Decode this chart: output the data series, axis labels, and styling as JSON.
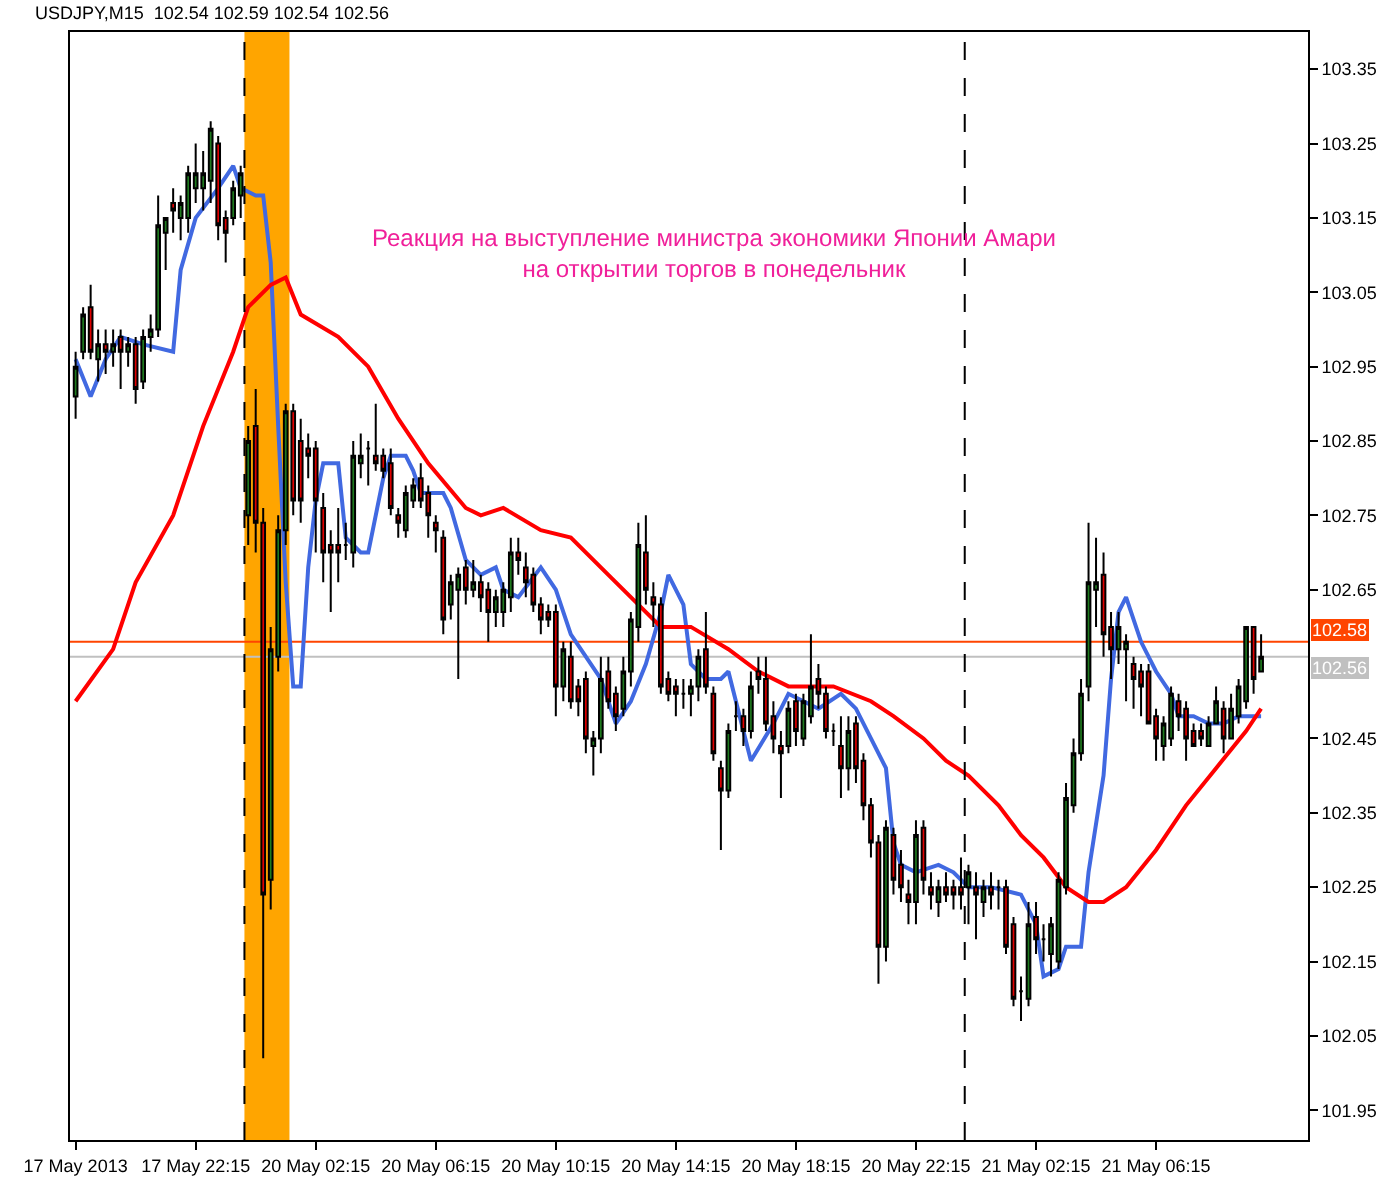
{
  "chart_data": {
    "type": "candlestick",
    "title": "USDJPY,M15  102.54 102.59 102.54 102.56",
    "categories": [
      "17 May 2013",
      null,
      null,
      null,
      null,
      null,
      null,
      null,
      null,
      null,
      null,
      null,
      null,
      null,
      null,
      null,
      "17 May 22:15",
      null,
      null,
      null,
      null,
      null,
      null,
      null,
      null,
      null,
      null,
      null,
      null,
      null,
      null,
      null,
      "20 May 02:15",
      null,
      null,
      null,
      null,
      null,
      null,
      null,
      null,
      null,
      null,
      null,
      null,
      null,
      null,
      null,
      "20 May 06:15",
      null,
      null,
      null,
      null,
      null,
      null,
      null,
      null,
      null,
      null,
      null,
      null,
      null,
      null,
      null,
      "20 May 10:15",
      null,
      null,
      null,
      null,
      null,
      null,
      null,
      null,
      null,
      null,
      null,
      null,
      null,
      null,
      null,
      "20 May 14:15",
      null,
      null,
      null,
      null,
      null,
      null,
      null,
      null,
      null,
      null,
      null,
      null,
      null,
      null,
      null,
      "20 May 18:15",
      null,
      null,
      null,
      null,
      null,
      null,
      null,
      null,
      null,
      null,
      null,
      null,
      null,
      null,
      null,
      "20 May 22:15",
      null,
      null,
      null,
      null,
      null,
      null,
      null,
      null,
      null,
      null,
      null,
      null,
      null,
      null,
      null,
      "21 May 02:15",
      null,
      null,
      null,
      null,
      null,
      null,
      null,
      null,
      null,
      null,
      null,
      null,
      null,
      null,
      null,
      "21 May 06:15",
      null,
      null,
      null,
      null,
      null,
      null,
      null,
      null,
      null,
      null,
      null,
      null,
      null,
      null
    ],
    "ohlc": [
      [
        102.91,
        102.97,
        102.88,
        102.95
      ],
      [
        102.97,
        103.03,
        102.96,
        103.02
      ],
      [
        103.03,
        103.06,
        102.96,
        102.97
      ],
      [
        102.96,
        103.0,
        102.93,
        102.98
      ],
      [
        102.98,
        103.0,
        102.94,
        102.97
      ],
      [
        102.97,
        103.0,
        102.95,
        102.98
      ],
      [
        102.99,
        103.0,
        102.92,
        102.97
      ],
      [
        102.97,
        102.99,
        102.95,
        102.98
      ],
      [
        102.98,
        102.99,
        102.9,
        102.92
      ],
      [
        102.93,
        103.0,
        102.92,
        102.99
      ],
      [
        102.99,
        103.02,
        102.97,
        103.0
      ],
      [
        103.0,
        103.18,
        102.99,
        103.14
      ],
      [
        103.13,
        103.15,
        103.08,
        103.15
      ],
      [
        103.17,
        103.19,
        103.13,
        103.16
      ],
      [
        103.15,
        103.18,
        103.12,
        103.17
      ],
      [
        103.15,
        103.22,
        103.13,
        103.21
      ],
      [
        103.19,
        103.25,
        103.17,
        103.21
      ],
      [
        103.19,
        103.24,
        103.16,
        103.21
      ],
      [
        103.2,
        103.28,
        103.17,
        103.27
      ],
      [
        103.25,
        103.26,
        103.12,
        103.14
      ],
      [
        103.15,
        103.16,
        103.09,
        103.13
      ],
      [
        103.15,
        103.2,
        103.14,
        103.19
      ],
      [
        103.18,
        103.22,
        103.15,
        103.21
      ],
      [
        102.75,
        102.87,
        102.71,
        102.85
      ],
      [
        102.87,
        102.92,
        102.7,
        102.74
      ],
      [
        102.74,
        102.76,
        102.02,
        102.24
      ],
      [
        102.26,
        102.6,
        102.22,
        102.57
      ],
      [
        102.56,
        102.75,
        102.54,
        102.73
      ],
      [
        102.73,
        102.9,
        102.71,
        102.89
      ],
      [
        102.89,
        102.9,
        102.75,
        102.77
      ],
      [
        102.85,
        102.88,
        102.74,
        102.77
      ],
      [
        102.84,
        102.86,
        102.8,
        102.83
      ],
      [
        102.84,
        102.85,
        102.7,
        102.77
      ],
      [
        102.76,
        102.78,
        102.66,
        102.7
      ],
      [
        102.71,
        102.73,
        102.62,
        102.7
      ],
      [
        102.71,
        102.76,
        102.66,
        102.7
      ],
      [
        102.71,
        102.74,
        102.69,
        102.71
      ],
      [
        102.7,
        102.85,
        102.68,
        102.83
      ],
      [
        102.82,
        102.86,
        102.8,
        102.83
      ],
      [
        102.84,
        102.85,
        102.79,
        102.84
      ],
      [
        102.83,
        102.9,
        102.81,
        102.82
      ],
      [
        102.83,
        102.84,
        102.8,
        102.81
      ],
      [
        102.82,
        102.84,
        102.75,
        102.76
      ],
      [
        102.75,
        102.76,
        102.72,
        102.74
      ],
      [
        102.73,
        102.79,
        102.72,
        102.78
      ],
      [
        102.77,
        102.8,
        102.76,
        102.79
      ],
      [
        102.8,
        102.82,
        102.76,
        102.77
      ],
      [
        102.78,
        102.79,
        102.72,
        102.75
      ],
      [
        102.74,
        102.75,
        102.7,
        102.73
      ],
      [
        102.72,
        102.73,
        102.59,
        102.61
      ],
      [
        102.63,
        102.67,
        102.61,
        102.66
      ],
      [
        102.65,
        102.68,
        102.53,
        102.67
      ],
      [
        102.68,
        102.69,
        102.63,
        102.65
      ],
      [
        102.65,
        102.69,
        102.64,
        102.66
      ],
      [
        102.66,
        102.67,
        102.62,
        102.64
      ],
      [
        102.65,
        102.66,
        102.58,
        102.62
      ],
      [
        102.62,
        102.65,
        102.6,
        102.64
      ],
      [
        102.62,
        102.66,
        102.6,
        102.65
      ],
      [
        102.64,
        102.72,
        102.62,
        102.7
      ],
      [
        102.7,
        102.72,
        102.67,
        102.69
      ],
      [
        102.68,
        102.7,
        102.64,
        102.66
      ],
      [
        102.67,
        102.68,
        102.62,
        102.63
      ],
      [
        102.63,
        102.64,
        102.59,
        102.61
      ],
      [
        102.62,
        102.63,
        102.6,
        102.61
      ],
      [
        102.62,
        102.63,
        102.48,
        102.52
      ],
      [
        102.52,
        102.58,
        102.5,
        102.57
      ],
      [
        102.56,
        102.58,
        102.49,
        102.5
      ],
      [
        102.52,
        102.53,
        102.48,
        102.5
      ],
      [
        102.53,
        102.54,
        102.43,
        102.45
      ],
      [
        102.44,
        102.46,
        102.4,
        102.45
      ],
      [
        102.45,
        102.56,
        102.43,
        102.53
      ],
      [
        102.54,
        102.56,
        102.49,
        102.5
      ],
      [
        102.51,
        102.52,
        102.46,
        102.48
      ],
      [
        102.49,
        102.56,
        102.48,
        102.54
      ],
      [
        102.54,
        102.62,
        102.52,
        102.61
      ],
      [
        102.6,
        102.74,
        102.58,
        102.71
      ],
      [
        102.7,
        102.75,
        102.63,
        102.65
      ],
      [
        102.64,
        102.66,
        102.6,
        102.63
      ],
      [
        102.63,
        102.64,
        102.51,
        102.52
      ],
      [
        102.53,
        102.54,
        102.5,
        102.51
      ],
      [
        102.52,
        102.53,
        102.48,
        102.51
      ],
      [
        102.51,
        102.53,
        102.49,
        102.51
      ],
      [
        102.51,
        102.53,
        102.48,
        102.52
      ],
      [
        102.52,
        102.57,
        102.5,
        102.56
      ],
      [
        102.57,
        102.62,
        102.51,
        102.52
      ],
      [
        102.51,
        102.52,
        102.42,
        102.43
      ],
      [
        102.41,
        102.42,
        102.3,
        102.38
      ],
      [
        102.38,
        102.47,
        102.37,
        102.46
      ],
      [
        102.48,
        102.5,
        102.46,
        102.48
      ],
      [
        102.48,
        102.49,
        102.44,
        102.46
      ],
      [
        102.46,
        102.54,
        102.45,
        102.52
      ],
      [
        102.54,
        102.56,
        102.51,
        102.53
      ],
      [
        102.53,
        102.56,
        102.46,
        102.47
      ],
      [
        102.48,
        102.5,
        102.43,
        102.45
      ],
      [
        102.44,
        102.46,
        102.37,
        102.43
      ],
      [
        102.44,
        102.5,
        102.43,
        102.49
      ],
      [
        102.5,
        102.51,
        102.44,
        102.46
      ],
      [
        102.45,
        102.51,
        102.44,
        102.5
      ],
      [
        102.48,
        102.59,
        102.47,
        102.52
      ],
      [
        102.53,
        102.55,
        102.49,
        102.51
      ],
      [
        102.51,
        102.52,
        102.45,
        102.46
      ],
      [
        102.46,
        102.47,
        102.44,
        102.46
      ],
      [
        102.44,
        102.48,
        102.37,
        102.41
      ],
      [
        102.41,
        102.48,
        102.38,
        102.46
      ],
      [
        102.47,
        102.48,
        102.39,
        102.41
      ],
      [
        102.42,
        102.43,
        102.34,
        102.36
      ],
      [
        102.36,
        102.37,
        102.29,
        102.31
      ],
      [
        102.31,
        102.32,
        102.12,
        102.17
      ],
      [
        102.17,
        102.34,
        102.15,
        102.33
      ],
      [
        102.32,
        102.33,
        102.24,
        102.26
      ],
      [
        102.28,
        102.3,
        102.23,
        102.25
      ],
      [
        102.24,
        102.26,
        102.2,
        102.23
      ],
      [
        102.23,
        102.34,
        102.2,
        102.32
      ],
      [
        102.33,
        102.34,
        102.24,
        102.26
      ],
      [
        102.25,
        102.27,
        102.22,
        102.24
      ],
      [
        102.23,
        102.26,
        102.21,
        102.25
      ],
      [
        102.25,
        102.27,
        102.23,
        102.24
      ],
      [
        102.25,
        102.26,
        102.22,
        102.24
      ],
      [
        102.25,
        102.29,
        102.22,
        102.24
      ],
      [
        102.25,
        102.28,
        102.2,
        102.27
      ],
      [
        102.25,
        102.27,
        102.18,
        102.24
      ],
      [
        102.23,
        102.26,
        102.21,
        102.25
      ],
      [
        102.25,
        102.27,
        102.22,
        102.24
      ],
      [
        102.25,
        102.26,
        102.22,
        102.25
      ],
      [
        102.25,
        102.26,
        102.16,
        102.17
      ],
      [
        102.2,
        102.21,
        102.09,
        102.1
      ],
      [
        102.11,
        102.13,
        102.07,
        102.11
      ],
      [
        102.1,
        102.23,
        102.09,
        102.2
      ],
      [
        102.21,
        102.23,
        102.16,
        102.18
      ],
      [
        102.18,
        102.2,
        102.15,
        102.18
      ],
      [
        102.16,
        102.21,
        102.13,
        102.2
      ],
      [
        102.15,
        102.27,
        102.14,
        102.26
      ],
      [
        102.25,
        102.39,
        102.24,
        102.37
      ],
      [
        102.36,
        102.45,
        102.35,
        102.43
      ],
      [
        102.43,
        102.53,
        102.42,
        102.51
      ],
      [
        102.52,
        102.74,
        102.5,
        102.66
      ],
      [
        102.65,
        102.72,
        102.6,
        102.66
      ],
      [
        102.67,
        102.7,
        102.56,
        102.59
      ],
      [
        102.6,
        102.62,
        102.53,
        102.57
      ],
      [
        102.57,
        102.62,
        102.55,
        102.6
      ],
      [
        102.57,
        102.59,
        102.5,
        102.58
      ],
      [
        102.55,
        102.56,
        102.49,
        102.53
      ],
      [
        102.54,
        102.55,
        102.48,
        102.52
      ],
      [
        102.54,
        102.55,
        102.47,
        102.47
      ],
      [
        102.48,
        102.49,
        102.42,
        102.45
      ],
      [
        102.44,
        102.48,
        102.42,
        102.47
      ],
      [
        102.45,
        102.52,
        102.44,
        102.51
      ],
      [
        102.5,
        102.51,
        102.46,
        102.48
      ],
      [
        102.49,
        102.5,
        102.42,
        102.45
      ],
      [
        102.46,
        102.47,
        102.44,
        102.44
      ],
      [
        102.46,
        102.47,
        102.44,
        102.45
      ],
      [
        102.44,
        102.48,
        102.44,
        102.47
      ],
      [
        102.47,
        102.52,
        102.47,
        102.5
      ],
      [
        102.49,
        102.5,
        102.43,
        102.45
      ],
      [
        102.45,
        102.51,
        102.45,
        102.49
      ],
      [
        102.48,
        102.53,
        102.47,
        102.52
      ],
      [
        102.5,
        102.6,
        102.49,
        102.6
      ],
      [
        102.6,
        102.6,
        102.51,
        102.53
      ],
      [
        102.54,
        102.59,
        102.54,
        102.56
      ]
    ],
    "series": [
      {
        "type": "line",
        "color": "#4169e1",
        "values": [
          102.96,
          null,
          102.91,
          null,
          102.96,
          null,
          102.99,
          null,
          null,
          102.98,
          null,
          null,
          null,
          102.97,
          103.08,
          null,
          103.15,
          null,
          null,
          103.19,
          null,
          103.22,
          103.19,
          null,
          103.18,
          103.18,
          103.09,
          102.87,
          102.66,
          102.52,
          102.52,
          102.68,
          102.77,
          102.82,
          null,
          102.82,
          102.72,
          null,
          102.7,
          102.7,
          null,
          102.8,
          102.83,
          null,
          102.83,
          102.81,
          102.78,
          null,
          null,
          102.78,
          102.76,
          null,
          102.69,
          null,
          102.67,
          null,
          102.68,
          102.65,
          null,
          102.64,
          null,
          null,
          102.68,
          null,
          102.65,
          null,
          102.59,
          null,
          102.56,
          null,
          102.53,
          null,
          102.47,
          null,
          102.5,
          null,
          102.55,
          null,
          102.62,
          102.67,
          null,
          102.63,
          102.55,
          null,
          102.53,
          null,
          102.53,
          102.54,
          102.5,
          null,
          102.42,
          null,
          null,
          102.47,
          null,
          102.51,
          null,
          102.5,
          null,
          102.49,
          null,
          null,
          102.51,
          null,
          102.49,
          null,
          102.45,
          null,
          102.41,
          102.31,
          102.28,
          null,
          102.27,
          null,
          null,
          102.28,
          null,
          102.27,
          null,
          102.25,
          null,
          null,
          102.25,
          null,
          null,
          null,
          102.24,
          null,
          102.2,
          102.13,
          null,
          102.14,
          102.17,
          null,
          102.17,
          102.27,
          null,
          102.4,
          102.53,
          102.62,
          102.64,
          null,
          102.58,
          null,
          102.54,
          null,
          102.51,
          102.48,
          null,
          102.48,
          null,
          102.47,
          null,
          102.47,
          null,
          102.48,
          null,
          null,
          102.48
        ]
      },
      {
        "type": "line",
        "color": "#ff0000",
        "values": [
          102.5,
          null,
          null,
          null,
          null,
          102.57,
          null,
          null,
          102.66,
          null,
          null,
          null,
          null,
          102.75,
          null,
          null,
          null,
          102.87,
          null,
          null,
          null,
          102.97,
          null,
          103.03,
          null,
          null,
          103.06,
          null,
          103.07,
          null,
          103.02,
          null,
          null,
          null,
          null,
          102.99,
          null,
          null,
          null,
          102.95,
          null,
          null,
          null,
          102.88,
          null,
          null,
          null,
          102.82,
          null,
          null,
          null,
          null,
          102.76,
          null,
          102.75,
          null,
          null,
          102.76,
          null,
          null,
          null,
          null,
          102.73,
          null,
          null,
          null,
          102.72,
          null,
          null,
          null,
          null,
          102.67,
          null,
          null,
          null,
          102.63,
          null,
          null,
          102.6,
          null,
          null,
          null,
          102.6,
          null,
          null,
          null,
          null,
          102.57,
          null,
          null,
          null,
          102.54,
          null,
          null,
          null,
          102.52,
          null,
          null,
          null,
          null,
          null,
          102.52,
          null,
          null,
          null,
          null,
          102.5,
          null,
          null,
          102.48,
          null,
          null,
          null,
          102.45,
          null,
          null,
          102.42,
          null,
          null,
          102.4,
          null,
          null,
          null,
          102.36,
          null,
          null,
          102.32,
          null,
          null,
          102.29,
          null,
          null,
          102.25,
          null,
          null,
          102.23,
          null,
          102.23,
          null,
          null,
          102.25,
          null,
          null,
          null,
          102.3,
          null,
          null,
          null,
          102.36,
          null,
          null,
          null,
          102.41,
          null,
          null,
          null,
          102.46,
          null,
          102.49
        ]
      }
    ],
    "ylim": [
      101.91,
      103.4
    ],
    "yticks": [
      101.95,
      102.05,
      102.15,
      102.25,
      102.35,
      102.45,
      102.65,
      102.75,
      102.85,
      102.95,
      103.05,
      103.15,
      103.25,
      103.35
    ],
    "ref_lines": [
      {
        "axis": "y",
        "value": 102.58,
        "label": "102.58",
        "color": "#ff4500"
      },
      {
        "axis": "y",
        "value": 102.56,
        "label": "102.56",
        "color": "#c0c0c0"
      }
    ],
    "annotations": [
      "Реакция на выступление министра экономики Японии Амари\nна открытии торгов в понедельник"
    ]
  }
}
